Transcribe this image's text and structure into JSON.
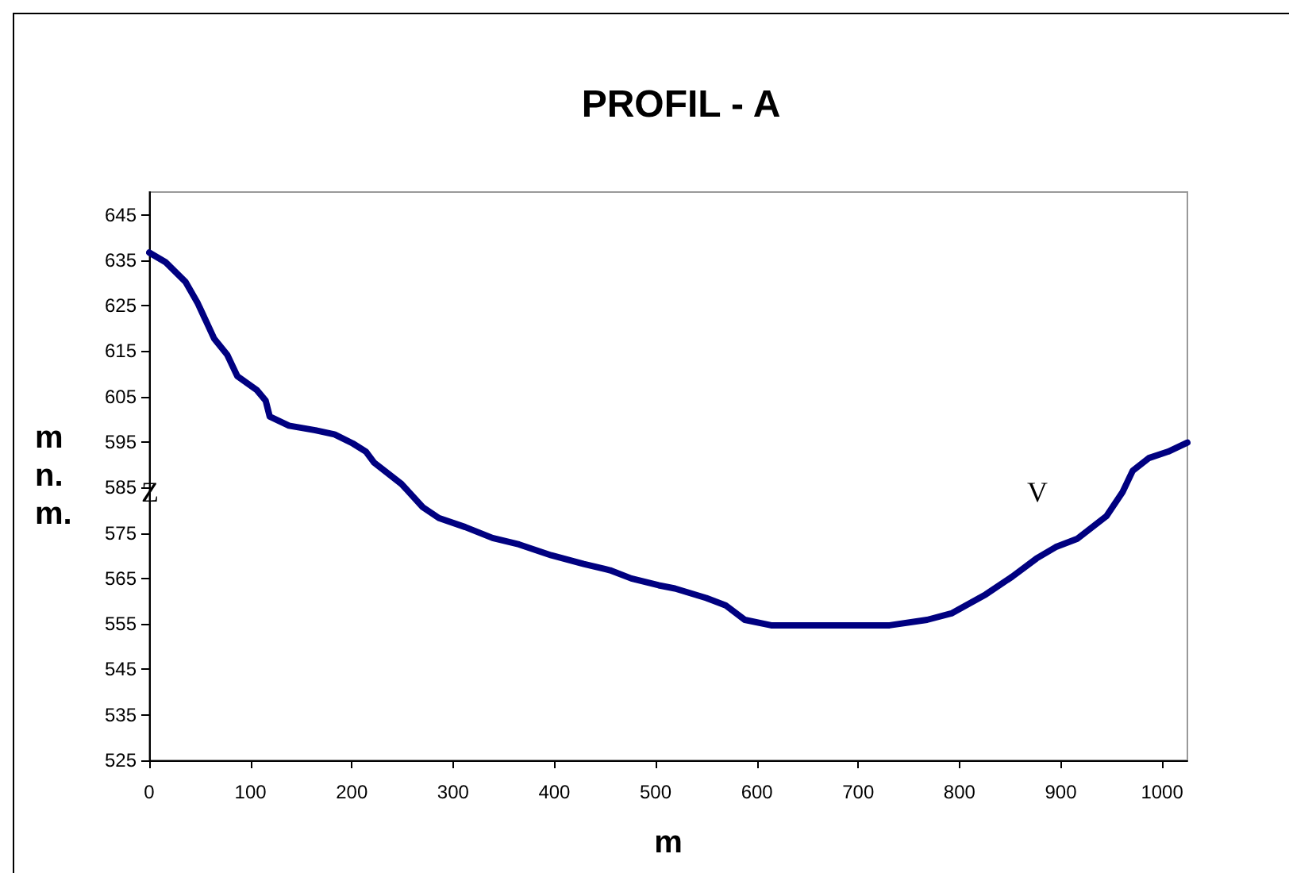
{
  "chart_data": {
    "type": "line",
    "title": "PROFIL - A",
    "xlabel": "m",
    "ylabel": "m n. m.",
    "annotations": [
      "Z",
      "V"
    ],
    "series": [
      {
        "color": "#000080",
        "x": [
          0,
          16,
          36,
          48,
          64,
          77,
          87,
          106,
          115,
          119,
          138,
          164,
          183,
          201,
          214,
          222,
          249,
          270,
          286,
          312,
          339,
          365,
          397,
          429,
          455,
          476,
          503,
          519,
          550,
          569,
          588,
          614,
          731,
          768,
          792,
          826,
          852,
          876,
          895,
          916,
          945,
          961,
          971,
          987,
          1006,
          1025
        ],
        "values": [
          636.7,
          634.6,
          630.2,
          625.5,
          617.8,
          614.2,
          609.5,
          606.5,
          604.1,
          600.6,
          598.6,
          597.6,
          596.7,
          594.7,
          592.9,
          590.5,
          585.8,
          580.7,
          578.3,
          576.3,
          573.9,
          572.5,
          570.1,
          568.2,
          566.8,
          565,
          563.5,
          562.8,
          560.7,
          559.1,
          555.9,
          554.7,
          554.7,
          555.9,
          557.3,
          561.5,
          565.4,
          569.4,
          571.9,
          573.7,
          578.7,
          584,
          588.7,
          591.5,
          592.9,
          594.9
        ]
      }
    ],
    "xlim": [
      0,
      1025
    ],
    "xticks": [
      0,
      100,
      200,
      300,
      400,
      500,
      600,
      700,
      800,
      900,
      1000
    ],
    "ylim": [
      525,
      650
    ],
    "yticks": [
      525,
      535,
      545,
      555,
      565,
      575,
      585,
      595,
      605,
      615,
      625,
      635,
      645
    ],
    "grid": false,
    "marker": "none",
    "line_style": "solid"
  }
}
